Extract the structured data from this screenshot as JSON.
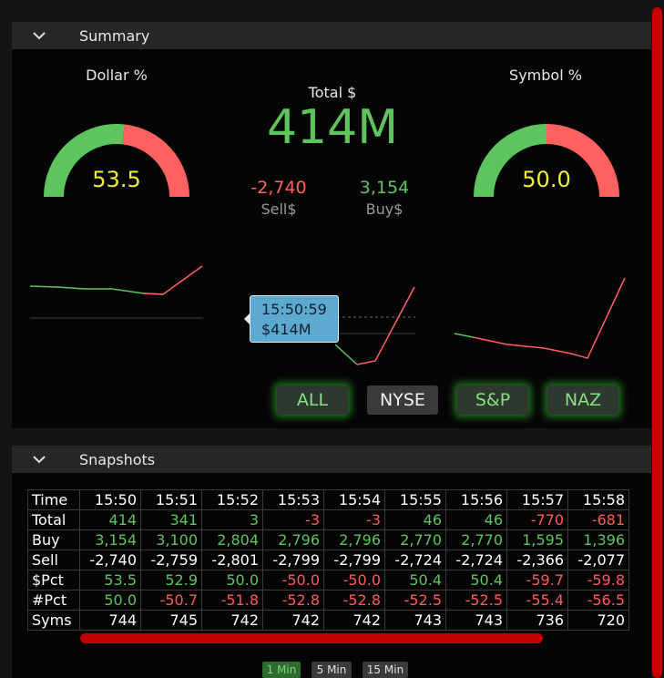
{
  "colors": {
    "green": "#5ec45e",
    "red": "#ff5a5a",
    "yellow": "#f0f03a",
    "tooltip_bg": "#5ea9cf",
    "scrollbar": "#c40000"
  },
  "summary": {
    "header": "Summary",
    "dollar_pct": {
      "label": "Dollar %",
      "value": "53.5",
      "fraction": 0.535
    },
    "symbol_pct": {
      "label": "Symbol %",
      "value": "50.0",
      "fraction": 0.5
    },
    "total": {
      "label": "Total $",
      "value": "414M"
    },
    "sell": {
      "value": "-2,740",
      "label": "Sell$"
    },
    "buy": {
      "value": "3,154",
      "label": "Buy$"
    },
    "tooltip": {
      "time": "15:50:59",
      "value": "$414M"
    },
    "filters": [
      {
        "label": "ALL",
        "active": true
      },
      {
        "label": "NYSE",
        "active": false
      },
      {
        "label": "S&P",
        "active": true
      },
      {
        "label": "NAZ",
        "active": true
      }
    ]
  },
  "snapshots": {
    "header": "Snapshots",
    "row_labels": [
      "Time",
      "Total",
      "Buy",
      "Sell",
      "$Pct",
      "#Pct",
      "Syms"
    ],
    "times": [
      "15:50",
      "15:51",
      "15:52",
      "15:53",
      "15:54",
      "15:55",
      "15:56",
      "15:57",
      "15:58"
    ],
    "rows": [
      [
        "414",
        "341",
        "3",
        "-3",
        "-3",
        "46",
        "46",
        "-770",
        "-681"
      ],
      [
        "3,154",
        "3,100",
        "2,804",
        "2,796",
        "2,796",
        "2,770",
        "2,770",
        "1,595",
        "1,396"
      ],
      [
        "-2,740",
        "-2,759",
        "-2,801",
        "-2,799",
        "-2,799",
        "-2,724",
        "-2,724",
        "-2,366",
        "-2,077"
      ],
      [
        "53.5",
        "52.9",
        "50.0",
        "-50.0",
        "-50.0",
        "50.4",
        "50.4",
        "-59.7",
        "-59.8"
      ],
      [
        "50.0",
        "-50.7",
        "-51.8",
        "-52.8",
        "-52.8",
        "-52.5",
        "-52.5",
        "-55.4",
        "-56.5"
      ],
      [
        "744",
        "745",
        "742",
        "742",
        "742",
        "743",
        "743",
        "736",
        "720"
      ]
    ],
    "row_colors": [
      "sign",
      "pos",
      "neu",
      "sign",
      "sign",
      "neu"
    ],
    "intervals": [
      {
        "label": "1 Min",
        "active": true
      },
      {
        "label": "5 Min",
        "active": false
      },
      {
        "label": "15 Min",
        "active": false
      }
    ]
  }
}
